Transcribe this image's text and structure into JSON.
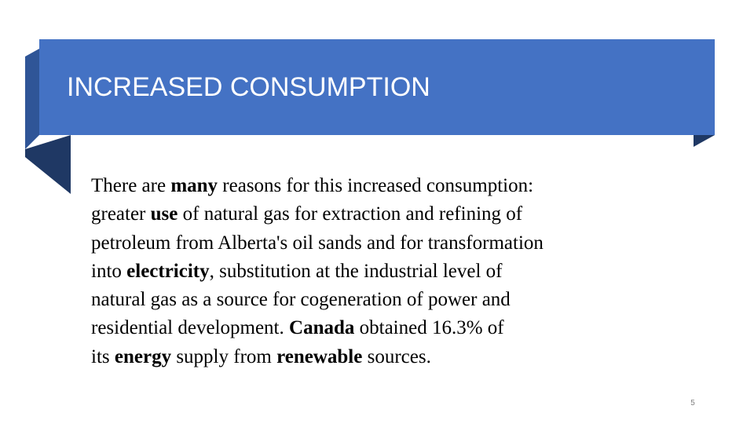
{
  "slide": {
    "title": "INCREASED CONSUMPTION",
    "page_number": "5",
    "body_lines": [
      [
        {
          "t": "There are "
        },
        {
          "t": "many",
          "b": true
        },
        {
          "t": " reasons for this increased consumption:"
        }
      ],
      [
        {
          "t": "greater "
        },
        {
          "t": "use",
          "b": true
        },
        {
          "t": " of natural gas for extraction and refining of"
        }
      ],
      [
        {
          "t": "petroleum from Alberta's oil sands and for transformation"
        }
      ],
      [
        {
          "t": "into "
        },
        {
          "t": "electricity",
          "b": true
        },
        {
          "t": ", substitution at the industrial level of"
        }
      ],
      [
        {
          "t": "natural gas as a source for cogeneration of power and"
        }
      ],
      [
        {
          "t": "residential development.  "
        },
        {
          "t": "Canada",
          "b": true
        },
        {
          "t": " obtained 16.3% of"
        }
      ],
      [
        {
          "t": "its "
        },
        {
          "t": "energy",
          "b": true
        },
        {
          "t": " supply from "
        },
        {
          "t": "renewable",
          "b": true
        },
        {
          "t": " sources."
        }
      ]
    ]
  },
  "colors": {
    "banner": "#4472c4",
    "banner_fold_dark": "#1f3864",
    "banner_fold_mid": "#2f5597",
    "text": "#000000",
    "title_text": "#ffffff"
  }
}
